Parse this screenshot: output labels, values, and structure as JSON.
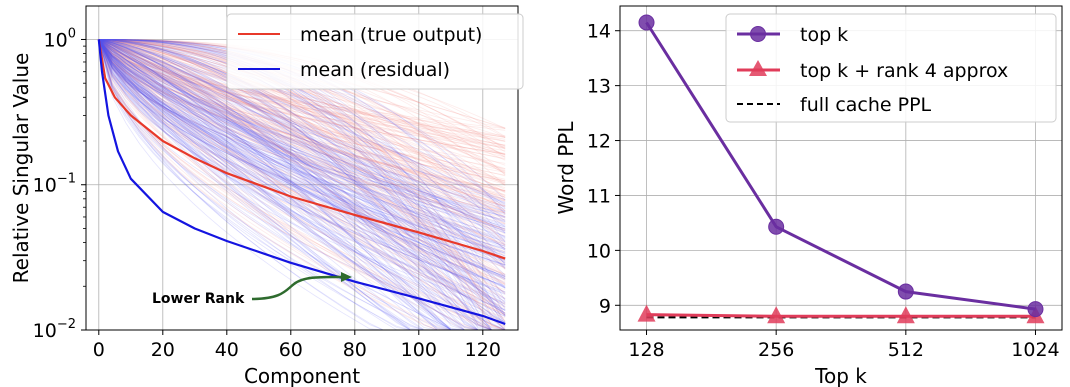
{
  "chart_data": [
    {
      "type": "line",
      "xlabel": "Component",
      "ylabel": "Relative Singular Value",
      "xlim": [
        -4,
        131
      ],
      "ylim": [
        0.01,
        1.7
      ],
      "yscale": "log",
      "grid": true,
      "legend_position": "top-right",
      "x_ticks": [
        "0",
        "20",
        "40",
        "60",
        "80",
        "100",
        "120"
      ],
      "y_ticks": [
        {
          "value": 1,
          "base": "10",
          "exp": "0"
        },
        {
          "value": 0.1,
          "base": "10",
          "exp": "−1"
        },
        {
          "value": 0.01,
          "base": "10",
          "exp": "−2"
        }
      ],
      "series": [
        {
          "name": "mean (true output)",
          "color": "#e8392a",
          "x": [
            0,
            2,
            5,
            10,
            20,
            30,
            40,
            60,
            80,
            100,
            120,
            127
          ],
          "y": [
            1.0,
            0.54,
            0.4,
            0.3,
            0.2,
            0.152,
            0.12,
            0.083,
            0.062,
            0.047,
            0.035,
            0.031
          ]
        },
        {
          "name": "mean (residual)",
          "color": "#1414e0",
          "x": [
            0,
            1,
            3,
            6,
            10,
            20,
            30,
            40,
            60,
            80,
            100,
            120,
            127
          ],
          "y": [
            1.0,
            0.6,
            0.3,
            0.17,
            0.11,
            0.065,
            0.05,
            0.041,
            0.029,
            0.0215,
            0.0165,
            0.0125,
            0.011
          ]
        }
      ],
      "annotation": {
        "text": "Lower Rank",
        "color": "#2e6b2e"
      },
      "colors": {
        "red_band": "#f08a80",
        "blue_band": "#5a5af0"
      }
    },
    {
      "type": "line",
      "xlabel": "Top k",
      "ylabel": "Word PPL",
      "categories": [
        "128",
        "256",
        "512",
        "1024"
      ],
      "ylim": [
        8.55,
        14.45
      ],
      "y_ticks": [
        9,
        10,
        11,
        12,
        13,
        14
      ],
      "grid": true,
      "legend_position": "top-right",
      "series": [
        {
          "name": "top k",
          "color": "#6a2ea0",
          "marker": "circle",
          "values": [
            14.15,
            10.43,
            9.25,
            8.93
          ]
        },
        {
          "name": "top k + rank 4 approx",
          "color": "#e03c5a",
          "marker": "triangle",
          "values": [
            8.83,
            8.8,
            8.8,
            8.8
          ]
        },
        {
          "name": "full cache PPL",
          "color": "#000000",
          "style": "dashed",
          "values": [
            8.78,
            8.78,
            8.78,
            8.78
          ]
        }
      ]
    }
  ]
}
